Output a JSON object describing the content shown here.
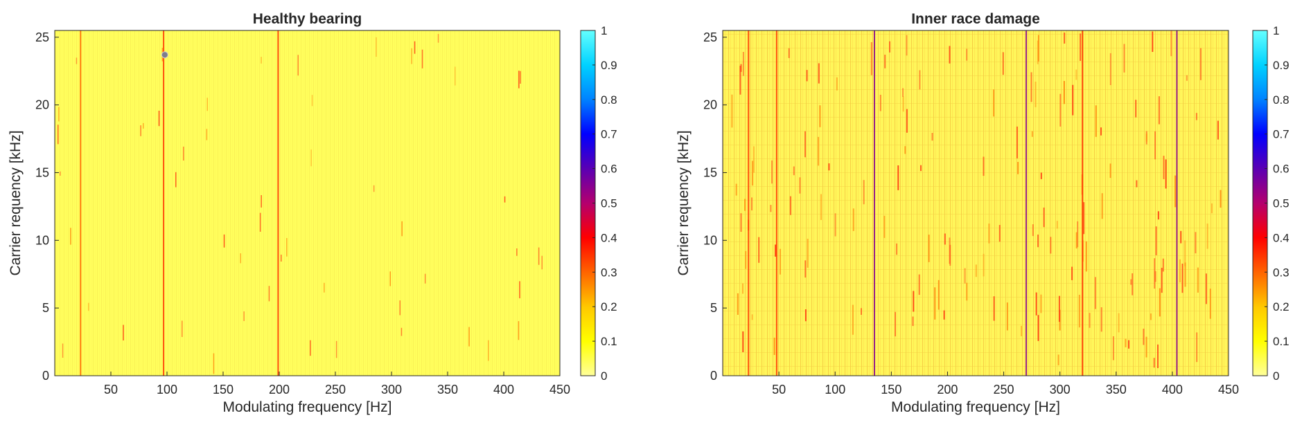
{
  "chart_data": [
    {
      "type": "heatmap",
      "title": "Healthy bearing",
      "xlabel": "Modulating frequency [Hz]",
      "ylabel": "Carrier requency [kHz]",
      "xlim": [
        0,
        450
      ],
      "ylim": [
        0,
        25.5
      ],
      "xticks": [
        50,
        100,
        150,
        200,
        250,
        300,
        350,
        400,
        450
      ],
      "yticks": [
        0,
        5,
        10,
        15,
        20,
        25
      ],
      "grid": false,
      "colormap": "hot-yellow-to-cyan",
      "colorbar": {
        "range": [
          0,
          1
        ],
        "ticks": [
          0,
          0.1,
          0.2,
          0.3,
          0.4,
          0.5,
          0.6,
          0.7,
          0.8,
          0.9,
          1
        ]
      },
      "background_value": 0.05,
      "features": [
        {
          "kind": "line",
          "x": 23,
          "y_from": 0,
          "y_to": 25.5,
          "value": 0.3
        },
        {
          "kind": "line",
          "x": 97,
          "y_from": 0,
          "y_to": 25.5,
          "value": 0.35
        },
        {
          "kind": "line",
          "x": 199,
          "y_from": 0,
          "y_to": 25.5,
          "value": 0.35
        },
        {
          "kind": "marker",
          "x": 98,
          "y": 23.7,
          "value": 0.65
        }
      ]
    },
    {
      "type": "heatmap",
      "title": "Inner race damage",
      "xlabel": "Modulating frequency [Hz]",
      "ylabel": "Carrier requency [kHz]",
      "xlim": [
        0,
        450
      ],
      "ylim": [
        0,
        25.5
      ],
      "xticks": [
        50,
        100,
        150,
        200,
        250,
        300,
        350,
        400,
        450
      ],
      "yticks": [
        0,
        5,
        10,
        15,
        20,
        25
      ],
      "grid": false,
      "colormap": "hot-yellow-to-cyan",
      "colorbar": {
        "range": [
          0,
          1
        ],
        "ticks": [
          0,
          0.1,
          0.2,
          0.3,
          0.4,
          0.5,
          0.6,
          0.7,
          0.8,
          0.9,
          1
        ]
      },
      "background_value": 0.12,
      "features": [
        {
          "kind": "line",
          "x": 135,
          "y_from": 0,
          "y_to": 25.5,
          "value": 0.55
        },
        {
          "kind": "line",
          "x": 270,
          "y_from": 0,
          "y_to": 25.5,
          "value": 0.55
        },
        {
          "kind": "line",
          "x": 404,
          "y_from": 0,
          "y_to": 25.5,
          "value": 0.55
        },
        {
          "kind": "line",
          "x": 23,
          "y_from": 0,
          "y_to": 25.5,
          "value": 0.35
        },
        {
          "kind": "line",
          "x": 48,
          "y_from": 0,
          "y_to": 25.5,
          "value": 0.35
        },
        {
          "kind": "line",
          "x": 320,
          "y_from": 0,
          "y_to": 25.5,
          "value": 0.35
        }
      ]
    }
  ]
}
